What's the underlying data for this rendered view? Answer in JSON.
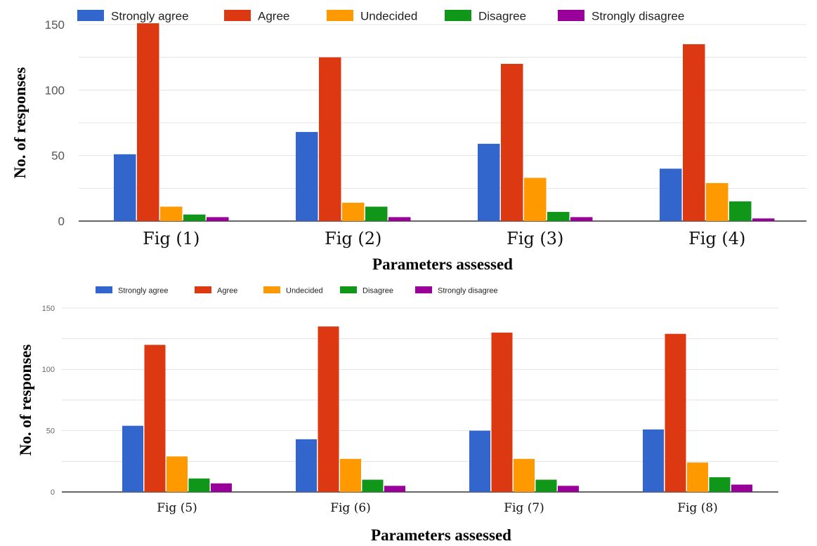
{
  "legend": [
    {
      "name": "Strongly agree",
      "color": "#3366cc"
    },
    {
      "name": "Agree",
      "color": "#dc3912"
    },
    {
      "name": "Undecided",
      "color": "#ff9900"
    },
    {
      "name": "Disagree",
      "color": "#109618"
    },
    {
      "name": "Strongly disagree",
      "color": "#990099"
    }
  ],
  "chart_data": [
    {
      "type": "bar",
      "categories": [
        "Fig (1)",
        "Fig (2)",
        "Fig (3)",
        "Fig (4)"
      ],
      "series": [
        {
          "name": "Strongly agree",
          "values": [
            51,
            68,
            59,
            40
          ]
        },
        {
          "name": "Agree",
          "values": [
            151,
            125,
            120,
            135
          ]
        },
        {
          "name": "Undecided",
          "values": [
            11,
            14,
            33,
            29
          ]
        },
        {
          "name": "Disagree",
          "values": [
            5,
            11,
            7,
            15
          ]
        },
        {
          "name": "Strongly disagree",
          "values": [
            3,
            3,
            3,
            2
          ]
        }
      ],
      "xlabel": "Parameters assessed",
      "ylabel": "No. of responses",
      "ylim": [
        0,
        150
      ],
      "yticks": [
        0,
        50,
        100,
        150
      ],
      "grid": true,
      "legend_position": "top"
    },
    {
      "type": "bar",
      "categories": [
        "Fig (5)",
        "Fig (6)",
        "Fig (7)",
        "Fig (8)"
      ],
      "series": [
        {
          "name": "Strongly agree",
          "values": [
            54,
            43,
            50,
            51
          ]
        },
        {
          "name": "Agree",
          "values": [
            120,
            135,
            130,
            129
          ]
        },
        {
          "name": "Undecided",
          "values": [
            29,
            27,
            27,
            24
          ]
        },
        {
          "name": "Disagree",
          "values": [
            11,
            10,
            10,
            12
          ]
        },
        {
          "name": "Strongly disagree",
          "values": [
            7,
            5,
            5,
            6
          ]
        }
      ],
      "xlabel": "Parameters assessed",
      "ylabel": "No. of responses",
      "ylim": [
        0,
        150
      ],
      "yticks": [
        0,
        50,
        100,
        150
      ],
      "grid": true,
      "legend_position": "top"
    }
  ]
}
